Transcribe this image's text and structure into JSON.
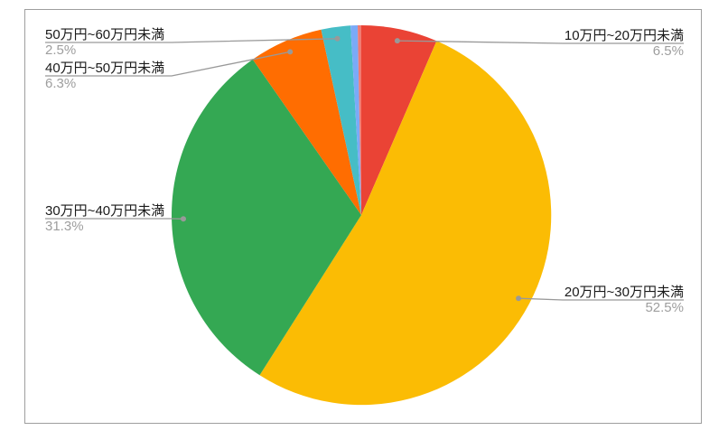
{
  "chart_data": {
    "type": "pie",
    "title": "",
    "unit": "%",
    "direction": "clockwise",
    "start_angle_deg": 0,
    "legend_position": "none",
    "grid": false,
    "slices": [
      {
        "label": "10万円~20万円未満",
        "value": 6.5,
        "display_pct": "6.5%",
        "color": "#ea4335"
      },
      {
        "label": "20万円~30万円未満",
        "value": 52.5,
        "display_pct": "52.5%",
        "color": "#fbbc04"
      },
      {
        "label": "30万円~40万円未満",
        "value": 31.3,
        "display_pct": "31.3%",
        "color": "#34a853"
      },
      {
        "label": "40万円~50万円未満",
        "value": 6.3,
        "display_pct": "6.3%",
        "color": "#ff6d01"
      },
      {
        "label": "50万円~60万円未満",
        "value": 2.5,
        "display_pct": "2.5%",
        "color": "#46bdc6"
      },
      {
        "label": "",
        "value": 0.6,
        "display_pct": "",
        "color": "#7baaf7"
      },
      {
        "label": "",
        "value": 0.3,
        "display_pct": "",
        "color": "#f07b72"
      }
    ],
    "labels_style": {
      "label_color": "#1a1a1a",
      "pct_color": "#9e9e9e",
      "line_color": "#999999",
      "frame_border_color": "#9e9e9e"
    }
  }
}
